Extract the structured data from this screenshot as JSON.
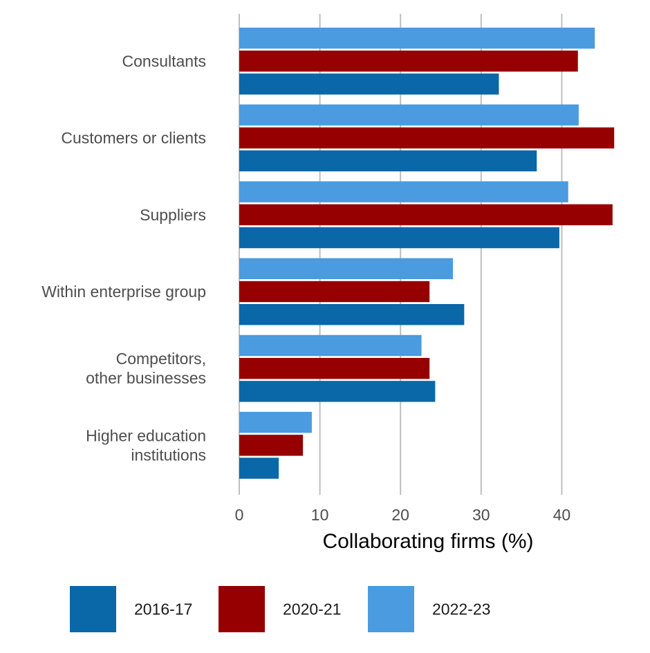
{
  "chart_data": {
    "type": "bar",
    "orientation": "horizontal",
    "title": "",
    "xlabel": "Collaborating firms (%)",
    "ylabel": "",
    "xlim": [
      0,
      48
    ],
    "xticks": [
      0,
      10,
      20,
      30,
      40
    ],
    "grid": "vertical major gridlines on",
    "legend_position": "bottom",
    "categories": [
      [
        "Consultants"
      ],
      [
        "Customers or clients"
      ],
      [
        "Suppliers"
      ],
      [
        "Within enterprise group"
      ],
      [
        "Competitors,",
        "other businesses"
      ],
      [
        "Higher education",
        "institutions"
      ]
    ],
    "series": [
      {
        "name": "2016-17",
        "color": "#0A67A8",
        "values": [
          32.2,
          36.9,
          39.7,
          27.9,
          24.3,
          4.9
        ]
      },
      {
        "name": "2020-21",
        "color": "#960000",
        "values": [
          42.0,
          46.5,
          46.3,
          23.6,
          23.6,
          7.9
        ]
      },
      {
        "name": "2022-23",
        "color": "#4A9BE0",
        "values": [
          44.1,
          42.1,
          40.8,
          26.5,
          22.6,
          9.0
        ]
      }
    ]
  }
}
